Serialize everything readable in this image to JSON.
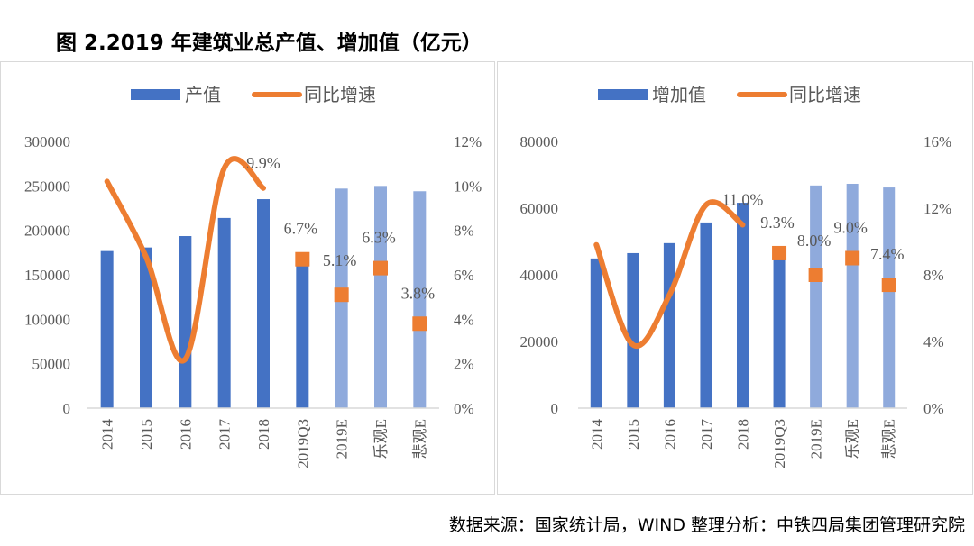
{
  "title": "图 2.2019 年建筑业总产值、增加值（亿元）",
  "source": "数据来源：国家统计局，WIND  整理分析：中铁四局集团管理研究院",
  "colors": {
    "bar_actual": "#4472c4",
    "bar_estimate": "#8faadc",
    "line": "#ed7d31",
    "axis": "#d9d9d9",
    "text": "#595959"
  },
  "chart_data": [
    {
      "type": "bar+line",
      "legend": [
        "产值",
        "同比增速"
      ],
      "legend_placement": "top",
      "categories": [
        "2014",
        "2015",
        "2016",
        "2017",
        "2018",
        "2019Q3",
        "2019E",
        "乐观E",
        "悲观E"
      ],
      "bar_values": [
        176713,
        180757,
        193567,
        213954,
        235086,
        164000,
        247000,
        250000,
        244000
      ],
      "bar_estimate_flags": [
        false,
        false,
        false,
        false,
        false,
        false,
        true,
        true,
        true
      ],
      "line_values": [
        10.2,
        6.8,
        2.2,
        10.8,
        9.9
      ],
      "marker_values": [
        null,
        null,
        null,
        null,
        null,
        6.7,
        5.1,
        6.3,
        3.8
      ],
      "data_labels": [
        "",
        "",
        "",
        "",
        "9.9%",
        "6.7%",
        "5.1%",
        "6.3%",
        "3.8%"
      ],
      "y_left": {
        "range": [
          0,
          300000
        ],
        "ticks": [
          "0",
          "50000",
          "100000",
          "150000",
          "200000",
          "250000",
          "300000"
        ]
      },
      "y_right": {
        "range": [
          0,
          12
        ],
        "ticks": [
          "0%",
          "2%",
          "4%",
          "6%",
          "8%",
          "10%",
          "12%"
        ]
      },
      "grid": false
    },
    {
      "type": "bar+line",
      "legend": [
        "增加值",
        "同比增速"
      ],
      "legend_placement": "top",
      "categories": [
        "2014",
        "2015",
        "2016",
        "2017",
        "2018",
        "2019Q3",
        "2019E",
        "乐观E",
        "悲观E"
      ],
      "bar_values": [
        44900,
        46500,
        49500,
        55700,
        61600,
        45000,
        66800,
        67300,
        66200
      ],
      "bar_estimate_flags": [
        false,
        false,
        false,
        false,
        false,
        false,
        true,
        true,
        true
      ],
      "line_values": [
        9.8,
        3.8,
        6.8,
        12.2,
        11.0
      ],
      "marker_values": [
        null,
        null,
        null,
        null,
        null,
        9.3,
        8.0,
        9.0,
        7.4
      ],
      "data_labels": [
        "",
        "",
        "",
        "",
        "11.0%",
        "9.3%",
        "8.0%",
        "9.0%",
        "7.4%"
      ],
      "y_left": {
        "range": [
          0,
          80000
        ],
        "ticks": [
          "0",
          "20000",
          "40000",
          "60000",
          "80000"
        ]
      },
      "y_right": {
        "range": [
          0,
          16
        ],
        "ticks": [
          "0%",
          "4%",
          "8%",
          "12%",
          "16%"
        ]
      },
      "grid": false
    }
  ]
}
